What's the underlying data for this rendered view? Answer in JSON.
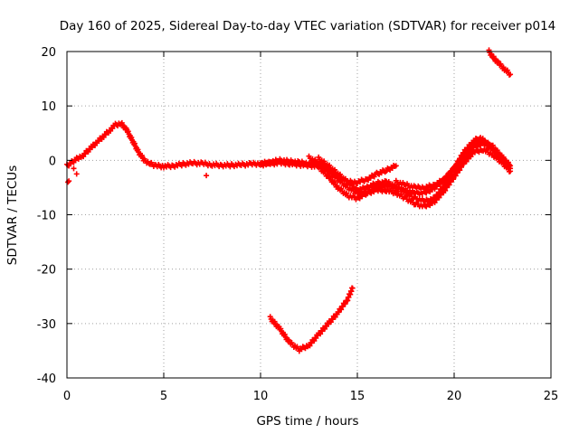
{
  "chart_data": {
    "type": "scatter",
    "title": "Day 160 of 2025, Sidereal Day-to-day VTEC variation (SDTVAR) for receiver p014",
    "xlabel": "GPS time / hours",
    "ylabel": "SDTVAR / TECUs",
    "xlim": [
      0,
      25
    ],
    "ylim": [
      -40,
      20
    ],
    "xticks": [
      0,
      5,
      10,
      15,
      20,
      25
    ],
    "yticks": [
      -40,
      -30,
      -20,
      -10,
      0,
      10,
      20
    ],
    "grid": true,
    "marker": "+",
    "color": "#ff0000",
    "series": [
      {
        "name": "track-main",
        "x": [
          0.0,
          0.2,
          0.4,
          0.6,
          0.8,
          1.0,
          1.3,
          1.6,
          1.9,
          2.2,
          2.5,
          2.8,
          3.1,
          3.4,
          3.7,
          4.0,
          4.3,
          4.6,
          5.0,
          5.5,
          6.0,
          6.5,
          7.0,
          7.5,
          8.0,
          8.5,
          9.0,
          9.5,
          10.0,
          10.5,
          11.0,
          11.5,
          12.0,
          12.5,
          13.0,
          13.5,
          14.0,
          14.5,
          15.0,
          15.5,
          16.0,
          16.5,
          17.0
        ],
        "y": [
          -1.0,
          -0.5,
          0.0,
          0.5,
          0.8,
          1.5,
          2.5,
          3.5,
          4.5,
          5.5,
          6.5,
          6.8,
          5.5,
          3.5,
          1.5,
          0.0,
          -0.6,
          -1.0,
          -1.1,
          -1.0,
          -0.7,
          -0.5,
          -0.6,
          -0.8,
          -0.9,
          -0.9,
          -0.8,
          -0.7,
          -0.6,
          -0.3,
          0.0,
          -0.2,
          -0.4,
          -0.6,
          -0.5,
          -1.5,
          -3.0,
          -4.0,
          -4.0,
          -3.5,
          -2.5,
          -1.8,
          -1.0
        ]
      },
      {
        "name": "track-b",
        "x": [
          10.0,
          10.5,
          11.0,
          11.5,
          12.0,
          12.5,
          13.0,
          13.5,
          14.0,
          14.5,
          15.0,
          15.5,
          16.0,
          16.5,
          17.0,
          17.5,
          18.0,
          18.5,
          19.0,
          19.5,
          20.0,
          20.5,
          21.0,
          21.3,
          21.6,
          22.0,
          22.5,
          22.8
        ],
        "y": [
          -0.8,
          -0.6,
          -0.5,
          -0.6,
          -0.8,
          -0.9,
          -1.2,
          -3.0,
          -5.0,
          -6.5,
          -7.0,
          -6.0,
          -5.0,
          -4.5,
          -5.0,
          -5.5,
          -6.0,
          -6.0,
          -5.0,
          -3.5,
          -1.5,
          1.5,
          3.5,
          4.2,
          3.5,
          2.0,
          0.0,
          -1.0
        ]
      },
      {
        "name": "track-c",
        "x": [
          12.5,
          13.0,
          13.5,
          14.0,
          14.5,
          15.0,
          15.5,
          16.0,
          16.5,
          17.0,
          17.5,
          18.0,
          18.5,
          19.0,
          19.5,
          20.0,
          20.5,
          21.0,
          21.5,
          22.0,
          22.5,
          22.9
        ],
        "y": [
          0.5,
          -0.5,
          -2.0,
          -3.5,
          -5.0,
          -6.0,
          -6.0,
          -5.5,
          -5.5,
          -6.0,
          -7.0,
          -8.0,
          -8.5,
          -7.5,
          -5.5,
          -3.0,
          -0.5,
          1.5,
          2.0,
          1.0,
          -0.5,
          -2.0
        ]
      },
      {
        "name": "track-d",
        "x": [
          13.0,
          13.5,
          14.0,
          14.5,
          15.0,
          15.5,
          16.0,
          16.5,
          17.0,
          17.5,
          18.0,
          18.5,
          19.0,
          19.5,
          20.0,
          20.5,
          21.0,
          21.5,
          22.0,
          22.5,
          22.9
        ],
        "y": [
          0.3,
          -1.0,
          -2.5,
          -4.0,
          -5.5,
          -5.0,
          -4.2,
          -4.0,
          -4.8,
          -6.0,
          -7.0,
          -7.5,
          -7.0,
          -4.5,
          -2.5,
          0.0,
          2.5,
          3.0,
          2.0,
          0.5,
          -1.5
        ]
      },
      {
        "name": "track-e",
        "x": [
          17.0,
          17.5,
          18.0,
          18.5,
          19.0,
          19.5,
          20.0,
          20.5,
          21.0,
          21.5,
          22.0,
          22.5,
          22.9
        ],
        "y": [
          -4.0,
          -4.5,
          -5.0,
          -5.0,
          -4.5,
          -3.5,
          -1.5,
          1.0,
          3.0,
          3.5,
          2.5,
          0.5,
          -1.0
        ]
      },
      {
        "name": "track-low",
        "x": [
          10.5,
          11.0,
          11.5,
          12.0,
          12.5,
          13.0,
          13.5,
          14.0,
          14.5,
          14.75
        ],
        "y": [
          -29.0,
          -31.0,
          -33.5,
          -34.8,
          -34.0,
          -32.0,
          -30.0,
          -28.0,
          -25.5,
          -23.5
        ]
      },
      {
        "name": "track-high",
        "x": [
          21.8,
          22.0,
          22.3,
          22.6,
          22.9
        ],
        "y": [
          20.0,
          19.0,
          17.8,
          16.8,
          15.8
        ]
      },
      {
        "name": "outliers",
        "x": [
          0.05,
          0.1,
          0.35,
          0.5,
          7.2
        ],
        "y": [
          -4.0,
          -3.8,
          -1.5,
          -2.5,
          -2.8
        ]
      }
    ]
  }
}
